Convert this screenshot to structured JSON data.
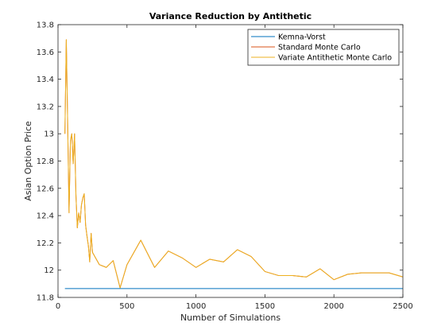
{
  "chart_data": {
    "type": "line",
    "title": "Variance Reduction by Antithetic",
    "xlabel": "Number of Simulations",
    "ylabel": "Asian Option Price",
    "xlim": [
      0,
      2500
    ],
    "ylim": [
      11.8,
      13.8
    ],
    "x_ticks": [
      0,
      500,
      1000,
      1500,
      2000,
      2500
    ],
    "x_tick_labels": [
      "0",
      "500",
      "1000",
      "1500",
      "2000",
      "2500"
    ],
    "y_ticks": [
      11.8,
      12,
      12.2,
      12.4,
      12.6,
      12.8,
      13,
      13.2,
      13.4,
      13.6,
      13.8
    ],
    "y_tick_labels": [
      "11.8",
      "12",
      "12.2",
      "12.4",
      "12.6",
      "12.8",
      "13",
      "13.2",
      "13.4",
      "13.6",
      "13.8"
    ],
    "grid": false,
    "legend_position": "top-right",
    "series": [
      {
        "name": "Kemna-Vorst",
        "color": "#0072BD",
        "x": [
          50,
          2500
        ],
        "y": [
          11.865,
          11.865
        ]
      },
      {
        "name": "Standard Monte Carlo",
        "color": "#D95319",
        "x": [
          50,
          60,
          70,
          80,
          90,
          100,
          110,
          120,
          130,
          140,
          150,
          160,
          170,
          180,
          190,
          200,
          210,
          220,
          230,
          240,
          250,
          300,
          350,
          400,
          450,
          500,
          600,
          700,
          800,
          900,
          1000,
          1100,
          1200,
          1300,
          1400,
          1500,
          1600,
          1700,
          1800,
          1900,
          2000,
          2100,
          2200,
          2300,
          2400,
          2500
        ],
        "y": [
          13.0,
          13.69,
          13.08,
          12.42,
          12.95,
          13.0,
          12.78,
          13.0,
          12.55,
          12.31,
          12.42,
          12.35,
          12.48,
          12.53,
          12.56,
          12.33,
          12.25,
          12.18,
          12.06,
          12.27,
          12.13,
          12.04,
          12.02,
          12.07,
          11.87,
          12.04,
          12.22,
          12.02,
          12.14,
          12.09,
          12.02,
          12.08,
          12.06,
          12.15,
          12.1,
          11.99,
          11.96,
          11.96,
          11.95,
          12.01,
          11.93,
          11.97,
          11.98,
          11.98,
          11.98,
          11.95
        ]
      },
      {
        "name": "Variate Antithetic Monte Carlo",
        "color": "#EDB120",
        "x": [
          50,
          60,
          70,
          80,
          90,
          100,
          110,
          120,
          130,
          140,
          150,
          160,
          170,
          180,
          190,
          200,
          210,
          220,
          230,
          240,
          250,
          300,
          350,
          400,
          450,
          500,
          600,
          700,
          800,
          900,
          1000,
          1100,
          1200,
          1300,
          1400,
          1500,
          1600,
          1700,
          1800,
          1900,
          2000,
          2100,
          2200,
          2300,
          2400,
          2500
        ],
        "y": [
          13.0,
          13.69,
          13.08,
          12.42,
          12.95,
          13.0,
          12.78,
          13.0,
          12.55,
          12.31,
          12.42,
          12.35,
          12.48,
          12.53,
          12.56,
          12.33,
          12.25,
          12.18,
          12.06,
          12.27,
          12.13,
          12.04,
          12.02,
          12.07,
          11.87,
          12.04,
          12.22,
          12.02,
          12.14,
          12.09,
          12.02,
          12.08,
          12.06,
          12.15,
          12.1,
          11.99,
          11.96,
          11.96,
          11.95,
          12.01,
          11.93,
          11.97,
          11.98,
          11.98,
          11.98,
          11.95
        ]
      }
    ]
  }
}
